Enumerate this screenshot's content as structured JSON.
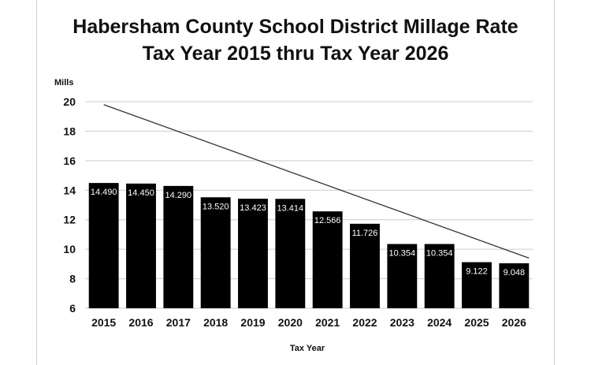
{
  "chart_data": {
    "type": "bar",
    "title": "Habersham County School District Millage Rate",
    "subtitle": "Tax Year 2015 thru Tax Year 2026",
    "xlabel": "Tax Year",
    "ylabel": "Mills",
    "ylim": [
      6,
      20
    ],
    "yticks": [
      6,
      8,
      10,
      12,
      14,
      16,
      18,
      20
    ],
    "grid": true,
    "categories": [
      "2015",
      "2016",
      "2017",
      "2018",
      "2019",
      "2020",
      "2021",
      "2022",
      "2023",
      "2024",
      "2025",
      "2026"
    ],
    "values": [
      14.49,
      14.45,
      14.29,
      13.52,
      13.423,
      13.414,
      12.566,
      11.726,
      10.354,
      10.354,
      9.122,
      9.048
    ],
    "value_labels": [
      "14.490",
      "14.450",
      "14.290",
      "13.520",
      "13.423",
      "13.414",
      "12.566",
      "11.726",
      "10.354",
      "10.354",
      "9.122",
      "9.048"
    ],
    "trend_line": {
      "start": {
        "x": "2015",
        "y": 19.8
      },
      "end": {
        "x": "2026",
        "y": 9.4
      }
    },
    "colors": {
      "bar": "#000000",
      "bar_label": "#ffffff",
      "grid": "#cccccc",
      "trend_line": "#333333"
    }
  }
}
